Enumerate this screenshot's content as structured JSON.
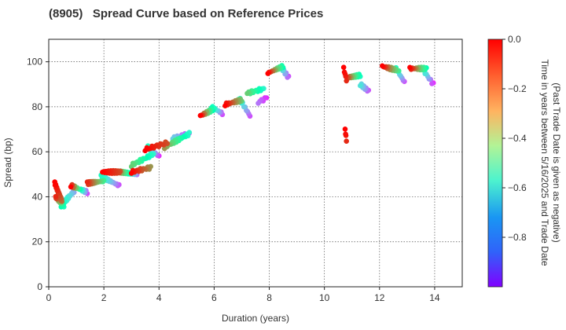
{
  "chart_data": {
    "type": "scatter",
    "title": "(8905)   Spread Curve based on Reference Prices",
    "xlabel": "Duration (years)",
    "ylabel": "Spread (bp)",
    "xlim": [
      0,
      15
    ],
    "ylim": [
      0,
      110
    ],
    "xticks": [
      0,
      2,
      4,
      6,
      8,
      10,
      12,
      14
    ],
    "yticks": [
      0,
      20,
      40,
      60,
      80,
      100
    ],
    "grid": true,
    "colorbar": {
      "label_line1": "Time in years between 5/16/2025 and Trade Date",
      "label_line2": "(Past Trade Date is given as negative)",
      "range": [
        -1.0,
        0.0
      ],
      "ticks": [
        0.0,
        -0.2,
        -0.4,
        -0.6,
        -0.8
      ],
      "colormap": "rainbow"
    },
    "segments": [
      {
        "x0": 0.22,
        "x1": 0.48,
        "y0": 46,
        "y1": 38,
        "c0": 0.0,
        "c1": -0.15,
        "n": 22
      },
      {
        "x0": 0.25,
        "x1": 0.55,
        "y0": 40,
        "y1": 36,
        "c0": -0.05,
        "c1": -0.55,
        "n": 18
      },
      {
        "x0": 0.45,
        "x1": 0.95,
        "y0": 36,
        "y1": 43,
        "c0": -0.5,
        "c1": -0.8,
        "n": 18
      },
      {
        "x0": 0.8,
        "x1": 1.4,
        "y0": 45,
        "y1": 42,
        "c0": 0.0,
        "c1": -0.9,
        "n": 14
      },
      {
        "x0": 1.4,
        "x1": 2.0,
        "y0": 46,
        "y1": 47,
        "c0": -0.05,
        "c1": -0.4,
        "n": 18
      },
      {
        "x0": 1.9,
        "x1": 2.55,
        "y0": 49,
        "y1": 45,
        "c0": -0.55,
        "c1": -0.9,
        "n": 16
      },
      {
        "x0": 1.95,
        "x1": 2.6,
        "y0": 51,
        "y1": 51,
        "c0": 0.0,
        "c1": -0.1,
        "n": 16
      },
      {
        "x0": 2.6,
        "x1": 3.2,
        "y0": 51,
        "y1": 50,
        "c0": -0.2,
        "c1": -0.85,
        "n": 16
      },
      {
        "x0": 3.0,
        "x1": 3.7,
        "y0": 51,
        "y1": 53,
        "c0": 0.0,
        "c1": -0.2,
        "n": 14
      },
      {
        "x0": 3.0,
        "x1": 3.8,
        "y0": 54,
        "y1": 59,
        "c0": -0.3,
        "c1": -0.6,
        "n": 16
      },
      {
        "x0": 3.6,
        "x1": 4.0,
        "y0": 62,
        "y1": 58,
        "c0": -0.55,
        "c1": -0.95,
        "n": 10
      },
      {
        "x0": 3.5,
        "x1": 4.3,
        "y0": 61,
        "y1": 64,
        "c0": 0.0,
        "c1": -0.1,
        "n": 14
      },
      {
        "x0": 4.2,
        "x1": 5.1,
        "y0": 62,
        "y1": 68,
        "c0": -0.2,
        "c1": -0.6,
        "n": 20
      },
      {
        "x0": 4.5,
        "x1": 5.1,
        "y0": 66,
        "y1": 68,
        "c0": -0.7,
        "c1": -0.95,
        "n": 12
      },
      {
        "x0": 5.5,
        "x1": 6.0,
        "y0": 76,
        "y1": 79,
        "c0": 0.0,
        "c1": -0.55,
        "n": 12
      },
      {
        "x0": 5.9,
        "x1": 6.3,
        "y0": 80,
        "y1": 77,
        "c0": -0.5,
        "c1": -0.9,
        "n": 10
      },
      {
        "x0": 6.4,
        "x1": 7.0,
        "y0": 81,
        "y1": 83,
        "c0": 0.0,
        "c1": -0.3,
        "n": 14
      },
      {
        "x0": 6.9,
        "x1": 7.3,
        "y0": 84,
        "y1": 76,
        "c0": -0.55,
        "c1": -0.9,
        "n": 10
      },
      {
        "x0": 7.2,
        "x1": 7.8,
        "y0": 86,
        "y1": 88,
        "c0": -0.3,
        "c1": -0.6,
        "n": 12
      },
      {
        "x0": 7.6,
        "x1": 7.9,
        "y0": 82,
        "y1": 84,
        "c0": -0.85,
        "c1": -0.95,
        "n": 6
      },
      {
        "x0": 7.95,
        "x1": 8.5,
        "y0": 95,
        "y1": 98,
        "c0": 0.0,
        "c1": -0.5,
        "n": 14
      },
      {
        "x0": 8.4,
        "x1": 8.7,
        "y0": 98,
        "y1": 93,
        "c0": -0.6,
        "c1": -0.9,
        "n": 8
      },
      {
        "x0": 10.7,
        "x1": 10.8,
        "y0": 97,
        "y1": 92,
        "c0": 0.0,
        "c1": -0.05,
        "n": 5
      },
      {
        "x0": 10.75,
        "x1": 10.8,
        "y0": 70,
        "y1": 65,
        "c0": 0.0,
        "c1": -0.05,
        "n": 4
      },
      {
        "x0": 10.85,
        "x1": 11.3,
        "y0": 93,
        "y1": 94,
        "c0": -0.1,
        "c1": -0.55,
        "n": 12
      },
      {
        "x0": 11.3,
        "x1": 11.6,
        "y0": 90,
        "y1": 87,
        "c0": -0.65,
        "c1": -0.9,
        "n": 8
      },
      {
        "x0": 12.1,
        "x1": 12.7,
        "y0": 98,
        "y1": 96,
        "c0": 0.0,
        "c1": -0.4,
        "n": 14
      },
      {
        "x0": 12.6,
        "x1": 12.9,
        "y0": 97,
        "y1": 91,
        "c0": -0.55,
        "c1": -0.9,
        "n": 8
      },
      {
        "x0": 13.1,
        "x1": 13.7,
        "y0": 97,
        "y1": 97,
        "c0": 0.0,
        "c1": -0.5,
        "n": 14
      },
      {
        "x0": 13.6,
        "x1": 13.95,
        "y0": 96,
        "y1": 90,
        "c0": -0.6,
        "c1": -0.95,
        "n": 8
      }
    ]
  }
}
